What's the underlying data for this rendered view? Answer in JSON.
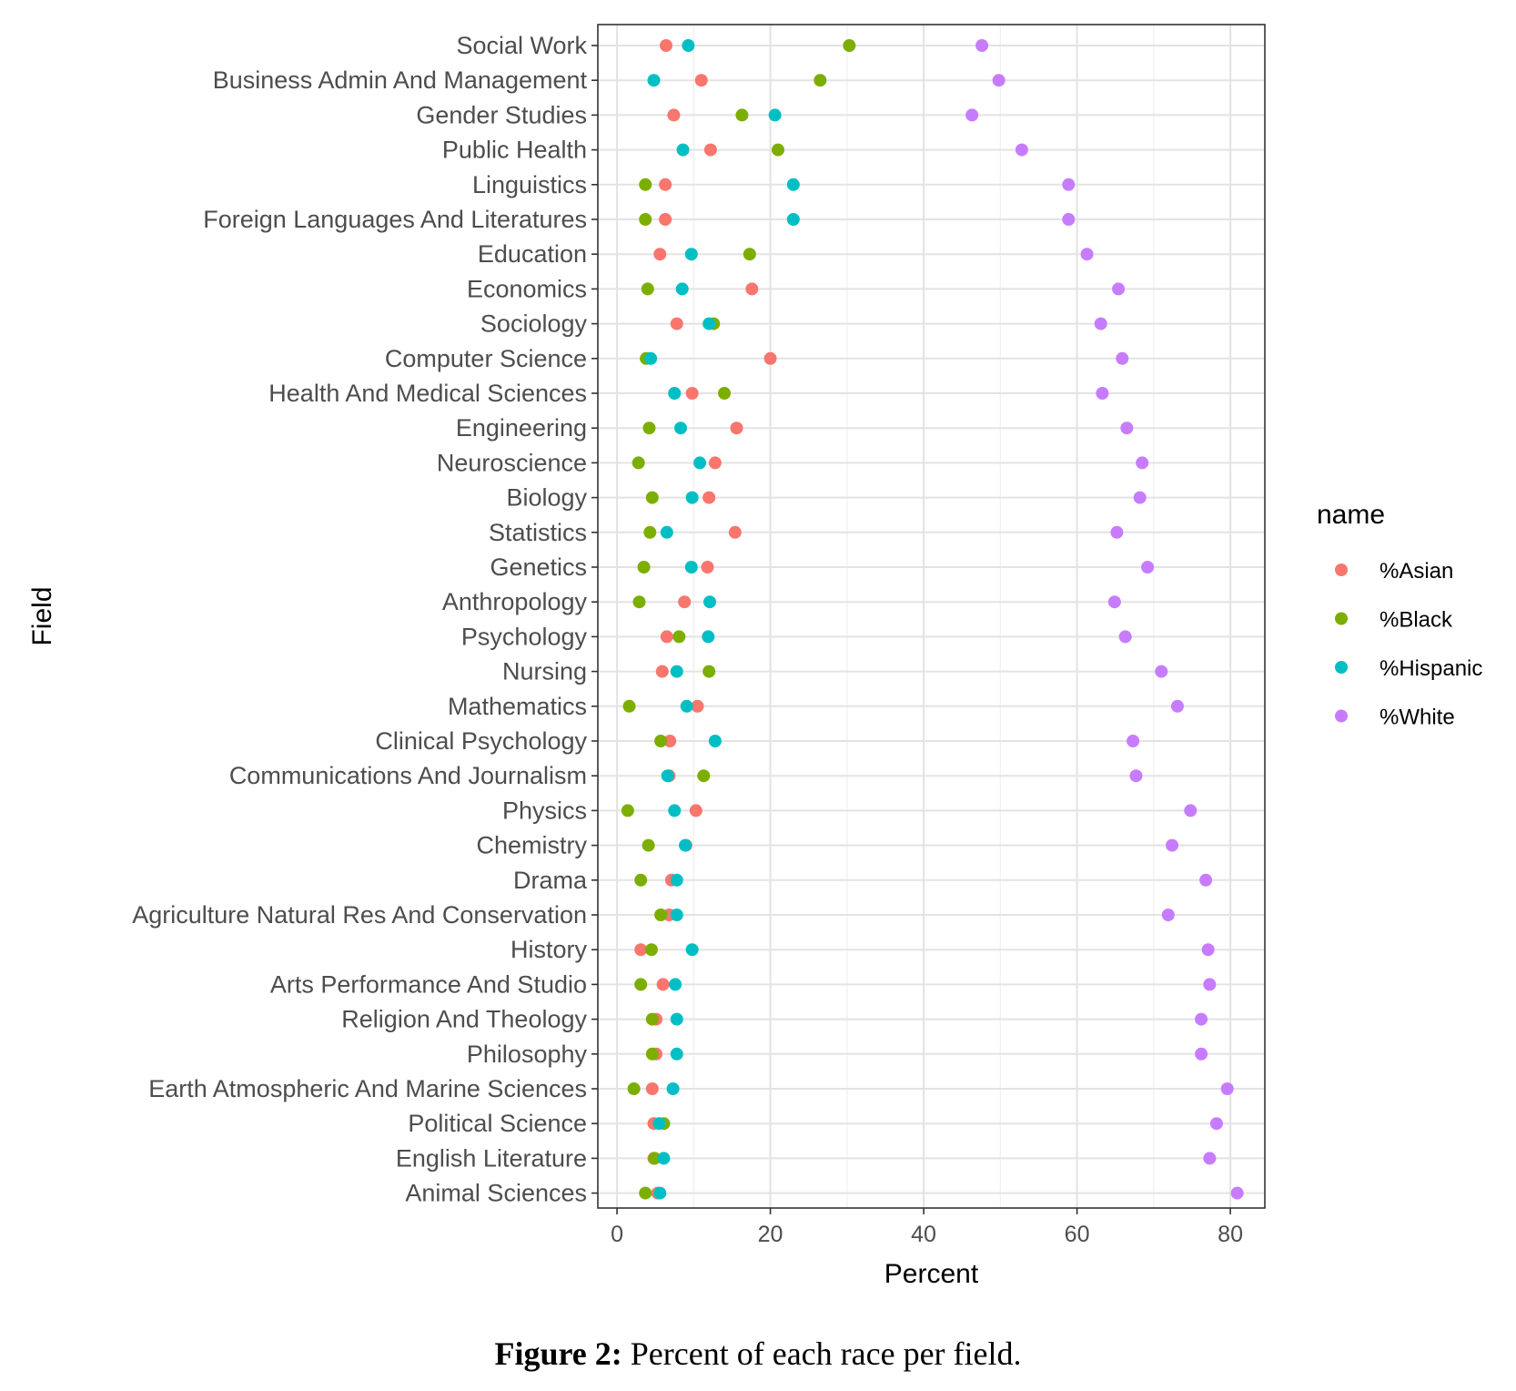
{
  "chart_data": {
    "type": "scatter",
    "xlabel": "Percent",
    "ylabel": "Field",
    "xlim": [
      -2.5,
      84.5
    ],
    "xticks": [
      0,
      20,
      40,
      60,
      80
    ],
    "grid": true,
    "legend": {
      "title": "name",
      "position": "right"
    },
    "categories": [
      "Social Work",
      "Business Admin And Management",
      "Gender Studies",
      "Public Health",
      "Linguistics",
      "Foreign Languages And Literatures",
      "Education",
      "Economics",
      "Sociology",
      "Computer Science",
      "Health And Medical Sciences",
      "Engineering",
      "Neuroscience",
      "Biology",
      "Statistics",
      "Genetics",
      "Anthropology",
      "Psychology",
      "Nursing",
      "Mathematics",
      "Clinical Psychology",
      "Communications And Journalism",
      "Physics",
      "Chemistry",
      "Drama",
      "Agriculture Natural Res And Conservation",
      "History",
      "Arts Performance And Studio",
      "Religion And Theology",
      "Philosophy",
      "Earth Atmospheric And Marine Sciences",
      "Political Science",
      "English Literature",
      "Animal Sciences"
    ],
    "series": [
      {
        "name": "%Asian",
        "color": "#F8766D",
        "values": [
          6.4,
          11.0,
          7.4,
          12.2,
          6.3,
          6.3,
          5.6,
          17.6,
          7.8,
          20.0,
          9.8,
          15.6,
          12.8,
          12.0,
          15.4,
          11.8,
          8.8,
          6.5,
          5.9,
          10.5,
          6.9,
          6.8,
          10.3,
          9.0,
          7.1,
          6.8,
          3.1,
          6.0,
          5.1,
          5.1,
          4.6,
          4.8,
          4.8,
          5.3
        ]
      },
      {
        "name": "%Black",
        "color": "#7CAE00",
        "values": [
          30.3,
          26.5,
          16.3,
          21.0,
          3.7,
          3.7,
          17.3,
          4.0,
          12.6,
          3.8,
          14.0,
          4.2,
          2.8,
          4.6,
          4.3,
          3.5,
          2.9,
          8.1,
          12.0,
          1.6,
          5.7,
          11.3,
          1.4,
          4.1,
          3.1,
          5.7,
          4.5,
          3.1,
          4.6,
          4.6,
          2.2,
          6.1,
          4.9,
          3.7
        ]
      },
      {
        "name": "%Hispanic",
        "color": "#00BFC4",
        "values": [
          9.3,
          4.8,
          20.6,
          8.6,
          23.0,
          23.0,
          9.7,
          8.5,
          12.0,
          4.4,
          7.5,
          8.3,
          10.8,
          9.8,
          6.5,
          9.7,
          12.1,
          11.9,
          7.8,
          9.1,
          12.8,
          6.6,
          7.5,
          8.9,
          7.8,
          7.8,
          9.8,
          7.6,
          7.8,
          7.8,
          7.3,
          5.5,
          6.1,
          5.6
        ]
      },
      {
        "name": "%White",
        "color": "#C77CFF",
        "values": [
          47.6,
          49.8,
          46.3,
          52.8,
          58.9,
          58.9,
          61.3,
          65.4,
          63.1,
          65.9,
          63.3,
          66.5,
          68.5,
          68.2,
          65.2,
          69.2,
          64.9,
          66.3,
          71.0,
          73.1,
          67.3,
          67.7,
          74.8,
          72.4,
          76.8,
          71.9,
          77.1,
          77.3,
          76.2,
          76.2,
          79.6,
          78.2,
          77.3,
          80.9
        ]
      }
    ]
  },
  "caption": {
    "label": "Figure 2:",
    "text": "Percent of each race per field."
  }
}
